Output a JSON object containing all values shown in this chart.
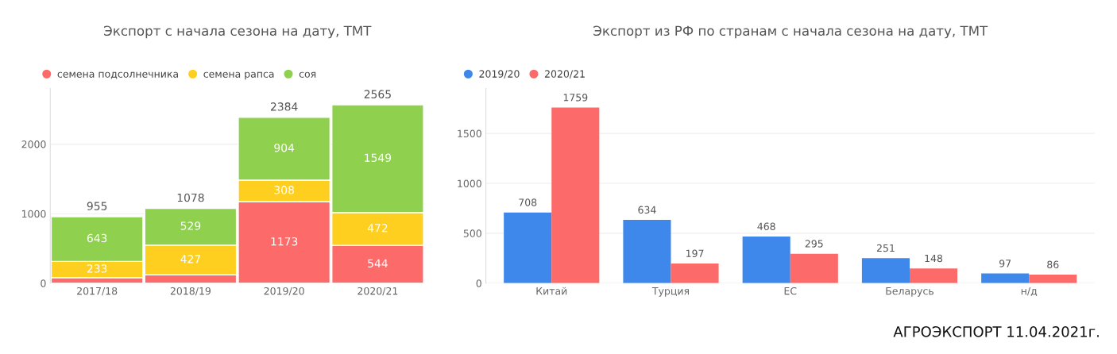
{
  "chart_data": [
    {
      "type": "bar",
      "title": "Экспорт с начала сезона на дату, ТМТ",
      "categories": [
        "2017/18",
        "2018/19",
        "2019/20",
        "2020/21"
      ],
      "stacked": true,
      "series": [
        {
          "name": "семена подсолнечника",
          "color": "#fd6a6a",
          "values": [
            80,
            120,
            1173,
            544
          ],
          "value_labels": [
            null,
            null,
            "1173",
            "544"
          ]
        },
        {
          "name": "семена рапса",
          "color": "#ffcf1f",
          "values": [
            233,
            427,
            308,
            472
          ],
          "value_labels": [
            "233",
            "427",
            "308",
            "472"
          ]
        },
        {
          "name": "соя",
          "color": "#8fd14f",
          "values": [
            643,
            529,
            904,
            1549
          ],
          "value_labels": [
            "643",
            "529",
            "904",
            "1549"
          ]
        }
      ],
      "totals": [
        "955",
        "1078",
        "2384",
        "2565"
      ],
      "ylim": [
        0,
        2800
      ],
      "yticks": [
        0,
        1000,
        2000
      ],
      "grid": "y",
      "legend": "top left"
    },
    {
      "type": "bar",
      "title": "Экспорт из РФ по странам с начала сезона на дату, ТМТ",
      "categories": [
        "Китай",
        "Турция",
        "ЕС",
        "Беларусь",
        "н/д"
      ],
      "series": [
        {
          "name": "2019/20",
          "color": "#3d88ea",
          "values": [
            708,
            634,
            468,
            251,
            97
          ]
        },
        {
          "name": "2020/21",
          "color": "#fd6a6a",
          "values": [
            1759,
            197,
            295,
            148,
            86
          ]
        }
      ],
      "data_labels": true,
      "ylim": [
        0,
        1950
      ],
      "yticks": [
        0,
        500,
        1000,
        1500
      ],
      "grid": "y",
      "legend": "top left",
      "annotations": [
        "АГРОЭКСПОРТ 11.04.2021г."
      ]
    }
  ]
}
